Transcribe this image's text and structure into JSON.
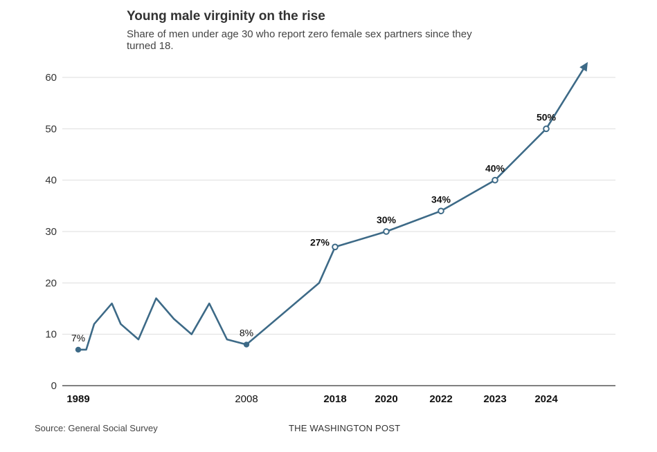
{
  "header": {
    "title": "Young male virginity on the rise",
    "subtitle": "Share of men under age 30 who report zero female sex partners since they turned 18."
  },
  "footer": {
    "source": "Source: General Social Survey",
    "credit": "THE WASHINGTON POST"
  },
  "colors": {
    "line": "#3d6a87",
    "grid": "#dddddd",
    "axis": "#333333"
  },
  "chart_data": {
    "type": "line",
    "title": "Young male virginity on the rise",
    "subtitle": "Share of men under age 30 who report zero female sex partners since they turned 18.",
    "xlabel": "",
    "ylabel": "",
    "ylim": [
      0,
      60
    ],
    "yticks": [
      0,
      10,
      20,
      30,
      40,
      50,
      60
    ],
    "grid": true,
    "x_tick_labels": [
      {
        "text": "1989",
        "bold": true,
        "index": 0
      },
      {
        "text": "2008",
        "bold": false,
        "index": 11
      },
      {
        "text": "2018",
        "bold": true,
        "index": 13
      },
      {
        "text": "2020",
        "bold": true,
        "index": 14
      },
      {
        "text": "2022",
        "bold": true,
        "index": 15
      },
      {
        "text": "2023",
        "bold": true,
        "index": 16
      },
      {
        "text": "2024",
        "bold": true,
        "index": 17
      }
    ],
    "series": [
      {
        "name": "Share of men under 30 with zero female partners since 18",
        "points": [
          {
            "x": 1989.0,
            "y": 7
          },
          {
            "x": 1989.9,
            "y": 7
          },
          {
            "x": 1990.8,
            "y": 12
          },
          {
            "x": 1992.8,
            "y": 16
          },
          {
            "x": 1993.8,
            "y": 12
          },
          {
            "x": 1995.8,
            "y": 9
          },
          {
            "x": 1997.8,
            "y": 17
          },
          {
            "x": 1999.8,
            "y": 13
          },
          {
            "x": 2001.8,
            "y": 10
          },
          {
            "x": 2003.8,
            "y": 16
          },
          {
            "x": 2005.8,
            "y": 9
          },
          {
            "x": 2008.0,
            "y": 8
          },
          {
            "x": 2016.2,
            "y": 20
          },
          {
            "x": 2018.0,
            "y": 27
          },
          {
            "x": 2020.0,
            "y": 30
          },
          {
            "x": 2022.0,
            "y": 34
          },
          {
            "x": 2023.0,
            "y": 40
          },
          {
            "x": 2024.0,
            "y": 50
          }
        ],
        "projection": {
          "x": 2025.0,
          "y": 63
        }
      }
    ],
    "annotations": [
      {
        "text": "7%",
        "index": 0,
        "bold": false
      },
      {
        "text": "8%",
        "index": 11,
        "bold": false
      },
      {
        "text": "27%",
        "index": 13,
        "bold": true
      },
      {
        "text": "30%",
        "index": 14,
        "bold": true
      },
      {
        "text": "34%",
        "index": 15,
        "bold": true
      },
      {
        "text": "40%",
        "index": 16,
        "bold": true
      },
      {
        "text": "50%",
        "index": 17,
        "bold": true
      }
    ]
  }
}
